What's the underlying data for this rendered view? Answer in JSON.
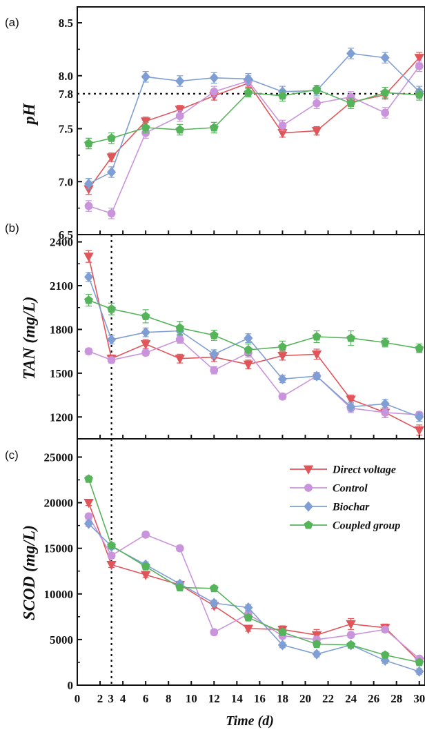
{
  "figure": {
    "xlabel": "Time (d)",
    "xticks": [
      0,
      2,
      3,
      4,
      6,
      8,
      10,
      12,
      14,
      16,
      18,
      20,
      22,
      24,
      26,
      28,
      30
    ],
    "xlim": [
      0,
      30.5
    ],
    "vline_x": 3
  },
  "legend": {
    "entries": [
      {
        "name": "Direct voltage",
        "color": "#e0555a",
        "marker": "triangle-down"
      },
      {
        "name": "Control",
        "color": "#c994dc",
        "marker": "circle"
      },
      {
        "name": "Biochar",
        "color": "#7f9fd4",
        "marker": "diamond"
      },
      {
        "name": "Coupled group",
        "color": "#55b35a",
        "marker": "pentagon"
      }
    ],
    "placement": "top-right of panel (c)"
  },
  "chart_data": [
    {
      "type": "line",
      "panel": "(a)",
      "ylabel": "pH",
      "ylim": [
        6.5,
        8.65
      ],
      "yticks": [
        6.5,
        7.0,
        7.5,
        8.0,
        8.5
      ],
      "ytick_labels": [
        "6.5",
        "7.0",
        "7.5",
        "8.0",
        "8.5"
      ],
      "hline": {
        "y": 7.83,
        "label": "7.8"
      },
      "x": [
        1,
        3,
        6,
        9,
        12,
        15,
        18,
        21,
        24,
        27,
        30
      ],
      "series": [
        {
          "name": "Direct voltage",
          "values": [
            6.93,
            7.23,
            7.57,
            7.68,
            7.81,
            7.93,
            7.46,
            7.48,
            7.75,
            7.82,
            8.17
          ],
          "err": [
            0.05,
            0.04,
            0.04,
            0.04,
            0.04,
            0.04,
            0.04,
            0.04,
            0.04,
            0.04,
            0.05
          ]
        },
        {
          "name": "Control",
          "values": [
            6.77,
            6.7,
            7.46,
            7.62,
            7.85,
            7.95,
            7.53,
            7.74,
            7.8,
            7.65,
            8.09
          ],
          "err": [
            0.05,
            0.05,
            0.05,
            0.05,
            0.05,
            0.05,
            0.05,
            0.05,
            0.05,
            0.05,
            0.05
          ]
        },
        {
          "name": "Biochar",
          "values": [
            6.98,
            7.09,
            7.99,
            7.95,
            7.98,
            7.97,
            7.85,
            7.86,
            8.21,
            8.17,
            7.85
          ],
          "err": [
            0.05,
            0.05,
            0.05,
            0.05,
            0.05,
            0.05,
            0.05,
            0.05,
            0.05,
            0.05,
            0.05
          ]
        },
        {
          "name": "Coupled group",
          "values": [
            7.36,
            7.41,
            7.51,
            7.49,
            7.51,
            7.84,
            7.81,
            7.87,
            7.74,
            7.84,
            7.82
          ],
          "err": [
            0.05,
            0.05,
            0.05,
            0.05,
            0.05,
            0.04,
            0.05,
            0.04,
            0.05,
            0.05,
            0.05
          ]
        }
      ]
    },
    {
      "type": "line",
      "panel": "(b)",
      "ylabel": "TAN (mg/L)",
      "ylim": [
        1050,
        2450
      ],
      "yticks": [
        1200,
        1500,
        1800,
        2100,
        2400
      ],
      "ytick_labels": [
        "1200",
        "1500",
        "1800",
        "2100",
        "2400"
      ],
      "x": [
        1,
        3,
        6,
        9,
        12,
        15,
        18,
        21,
        24,
        27,
        30
      ],
      "series": [
        {
          "name": "Direct voltage",
          "values": [
            2300,
            1600,
            1700,
            1600,
            1610,
            1560,
            1620,
            1630,
            1320,
            1230,
            1110
          ],
          "err": [
            40,
            25,
            30,
            30,
            30,
            30,
            30,
            35,
            30,
            35,
            35
          ]
        },
        {
          "name": "Control",
          "values": [
            1650,
            1590,
            1640,
            1730,
            1520,
            1640,
            1340,
            1480,
            1260,
            1230,
            1215
          ],
          "err": [
            20,
            20,
            20,
            25,
            25,
            30,
            20,
            20,
            30,
            35,
            20
          ]
        },
        {
          "name": "Biochar",
          "values": [
            2160,
            1730,
            1780,
            1790,
            1630,
            1740,
            1460,
            1480,
            1270,
            1290,
            1200
          ],
          "err": [
            30,
            30,
            30,
            30,
            30,
            30,
            25,
            25,
            30,
            30,
            30
          ]
        },
        {
          "name": "Coupled group",
          "values": [
            2000,
            1940,
            1890,
            1810,
            1760,
            1660,
            1680,
            1750,
            1740,
            1710,
            1670
          ],
          "err": [
            40,
            40,
            45,
            45,
            35,
            40,
            40,
            40,
            50,
            30,
            30
          ]
        }
      ]
    },
    {
      "type": "line",
      "panel": "(c)",
      "ylabel": "SCOD (mg/L)",
      "ylim": [
        0,
        27000
      ],
      "yticks": [
        0,
        5000,
        10000,
        15000,
        20000,
        25000
      ],
      "ytick_labels": [
        "0",
        "5000",
        "10000",
        "15000",
        "20000",
        "25000"
      ],
      "x": [
        1,
        3,
        6,
        9,
        12,
        15,
        18,
        21,
        24,
        27,
        30
      ],
      "series": [
        {
          "name": "Direct voltage",
          "values": [
            20000,
            13200,
            12100,
            11000,
            8700,
            6200,
            6100,
            5500,
            6700,
            6300,
            2600
          ],
          "err": [
            300,
            300,
            300,
            300,
            300,
            300,
            400,
            600,
            600,
            400,
            300
          ]
        },
        {
          "name": "Control",
          "values": [
            18500,
            14200,
            16500,
            15000,
            5800,
            7800,
            5400,
            5000,
            5500,
            6100,
            2900
          ],
          "err": [
            300,
            300,
            300,
            300,
            300,
            300,
            300,
            300,
            300,
            300,
            300
          ]
        },
        {
          "name": "Biochar",
          "values": [
            17700,
            15200,
            13200,
            11100,
            9000,
            8500,
            4400,
            3400,
            4400,
            2700,
            1500
          ],
          "err": [
            300,
            300,
            300,
            300,
            300,
            300,
            300,
            300,
            300,
            300,
            300
          ]
        },
        {
          "name": "Coupled group",
          "values": [
            22600,
            15300,
            13000,
            10700,
            10600,
            7400,
            5800,
            4500,
            4400,
            3300,
            2500
          ],
          "err": [
            300,
            300,
            300,
            300,
            300,
            300,
            300,
            300,
            300,
            300,
            300
          ]
        }
      ]
    }
  ]
}
